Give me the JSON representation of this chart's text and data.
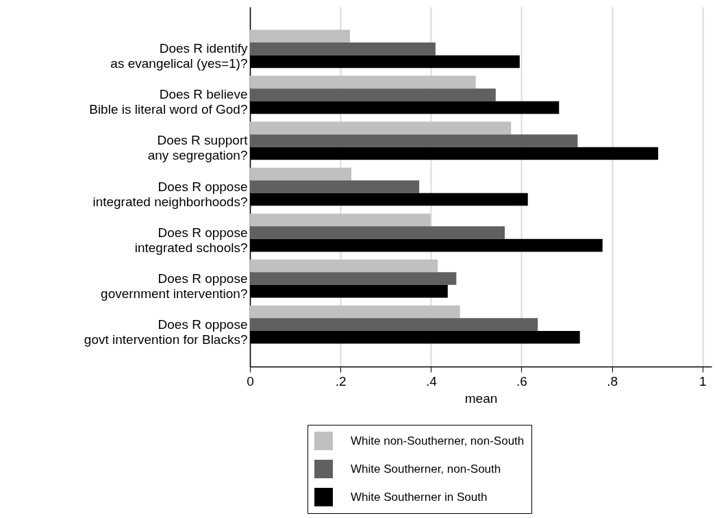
{
  "chart_data": {
    "type": "bar",
    "orientation": "horizontal",
    "xlabel": "mean",
    "categories": [
      "Does R identify\nas evangelical (yes=1)?",
      "Does R believe\nBible is literal word of God?",
      "Does R support\nany segregation?",
      "Does R oppose\nintegrated neighborhoods?",
      "Does R oppose\nintegrated schools?",
      "Does R oppose\ngovernment intervention?",
      "Does R oppose\ngovt intervention for Blacks?"
    ],
    "series": [
      {
        "name": "White non-Southerner, non-South",
        "color": "#c0c0c0",
        "values": [
          0.221,
          0.499,
          0.577,
          0.224,
          0.399,
          0.415,
          0.464
        ]
      },
      {
        "name": "White Southerner, non-South",
        "color": "#606060",
        "values": [
          0.41,
          0.543,
          0.724,
          0.374,
          0.563,
          0.456,
          0.636
        ]
      },
      {
        "name": "White Southerner in South",
        "color": "#000000",
        "values": [
          0.596,
          0.683,
          0.902,
          0.614,
          0.779,
          0.437,
          0.729
        ]
      }
    ],
    "xlim": [
      0,
      1.02
    ],
    "xticks": [
      0,
      {
        "value": 0.2,
        "label": ".2"
      },
      {
        "value": 0.4,
        "label": ".4"
      },
      {
        "value": 0.6,
        "label": ".6"
      },
      {
        "value": 0.8,
        "label": ".8"
      },
      1
    ],
    "grid": "x",
    "legend": "bottom"
  }
}
